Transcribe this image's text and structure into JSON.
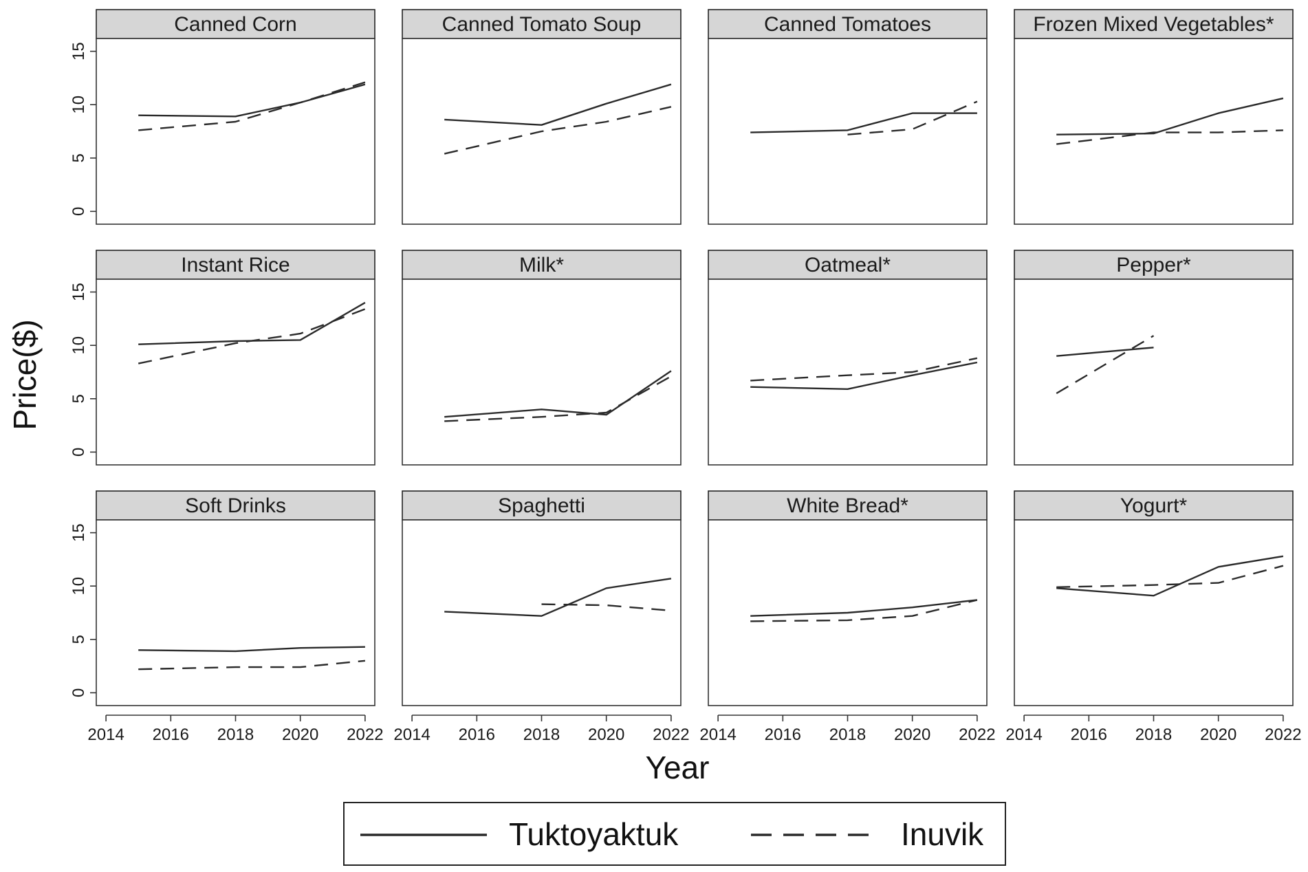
{
  "chart_data": {
    "type": "line",
    "ylabel": "Price($)",
    "xlabel": "Year",
    "xlim": [
      2013.7,
      2022.3
    ],
    "ylim": [
      -1.2,
      16.2
    ],
    "x_ticks": [
      "2014",
      "2016",
      "2018",
      "2020",
      "2022"
    ],
    "x_tick_values": [
      2014,
      2016,
      2018,
      2020,
      2022
    ],
    "y_ticks": [
      "0",
      "5",
      "10",
      "15"
    ],
    "y_tick_values": [
      0,
      5,
      10,
      15
    ],
    "legend": {
      "placement": "bottom-center",
      "entries": [
        {
          "name": "Tuktoyaktuk",
          "style": "solid"
        },
        {
          "name": "Inuvik",
          "style": "dashed"
        }
      ]
    },
    "line_color": "#2a2a2a",
    "strip_color": "#d6d6d6",
    "panels": [
      {
        "title": "Canned Corn",
        "series": [
          {
            "name": "Tuktoyaktuk",
            "x": [
              2015,
              2018,
              2020,
              2022
            ],
            "y": [
              9.0,
              8.9,
              10.2,
              11.9
            ]
          },
          {
            "name": "Inuvik",
            "x": [
              2015,
              2018,
              2020,
              2022
            ],
            "y": [
              7.6,
              8.4,
              10.2,
              12.1
            ]
          }
        ]
      },
      {
        "title": "Canned Tomato Soup",
        "series": [
          {
            "name": "Tuktoyaktuk",
            "x": [
              2015,
              2018,
              2020,
              2022
            ],
            "y": [
              8.6,
              8.1,
              10.1,
              11.9
            ]
          },
          {
            "name": "Inuvik",
            "x": [
              2015,
              2018,
              2020,
              2022
            ],
            "y": [
              5.4,
              7.5,
              8.4,
              9.8
            ]
          }
        ]
      },
      {
        "title": "Canned Tomatoes",
        "series": [
          {
            "name": "Tuktoyaktuk",
            "x": [
              2015,
              2018,
              2020,
              2022
            ],
            "y": [
              7.4,
              7.6,
              9.2,
              9.2
            ]
          },
          {
            "name": "Inuvik",
            "x": [
              2018,
              2020,
              2022
            ],
            "y": [
              7.2,
              7.7,
              10.3
            ]
          }
        ]
      },
      {
        "title": "Frozen Mixed Vegetables*",
        "series": [
          {
            "name": "Tuktoyaktuk",
            "x": [
              2015,
              2018,
              2020,
              2022
            ],
            "y": [
              7.2,
              7.3,
              9.2,
              10.6
            ]
          },
          {
            "name": "Inuvik",
            "x": [
              2015,
              2018,
              2020,
              2022
            ],
            "y": [
              6.3,
              7.4,
              7.4,
              7.6
            ]
          }
        ]
      },
      {
        "title": "Instant Rice",
        "series": [
          {
            "name": "Tuktoyaktuk",
            "x": [
              2015,
              2018,
              2020,
              2022
            ],
            "y": [
              10.1,
              10.4,
              10.5,
              14.0
            ]
          },
          {
            "name": "Inuvik",
            "x": [
              2015,
              2018,
              2020,
              2022
            ],
            "y": [
              8.3,
              10.2,
              11.1,
              13.4
            ]
          }
        ]
      },
      {
        "title": "Milk*",
        "series": [
          {
            "name": "Tuktoyaktuk",
            "x": [
              2015,
              2018,
              2020,
              2022
            ],
            "y": [
              3.3,
              4.0,
              3.5,
              7.6
            ]
          },
          {
            "name": "Inuvik",
            "x": [
              2015,
              2018,
              2020,
              2022
            ],
            "y": [
              2.9,
              3.3,
              3.7,
              7.1
            ]
          }
        ]
      },
      {
        "title": "Oatmeal*",
        "series": [
          {
            "name": "Tuktoyaktuk",
            "x": [
              2015,
              2018,
              2020,
              2022
            ],
            "y": [
              6.1,
              5.9,
              7.2,
              8.4
            ]
          },
          {
            "name": "Inuvik",
            "x": [
              2015,
              2018,
              2020,
              2022
            ],
            "y": [
              6.7,
              7.2,
              7.5,
              8.8
            ]
          }
        ]
      },
      {
        "title": "Pepper*",
        "series": [
          {
            "name": "Tuktoyaktuk",
            "x": [
              2015,
              2018
            ],
            "y": [
              9.0,
              9.8
            ]
          },
          {
            "name": "Inuvik",
            "x": [
              2015,
              2018
            ],
            "y": [
              5.5,
              10.9
            ]
          }
        ]
      },
      {
        "title": "Soft Drinks",
        "series": [
          {
            "name": "Tuktoyaktuk",
            "x": [
              2015,
              2018,
              2020,
              2022
            ],
            "y": [
              4.0,
              3.9,
              4.2,
              4.3
            ]
          },
          {
            "name": "Inuvik",
            "x": [
              2015,
              2018,
              2020,
              2022
            ],
            "y": [
              2.2,
              2.4,
              2.4,
              3.0
            ]
          }
        ]
      },
      {
        "title": "Spaghetti",
        "series": [
          {
            "name": "Tuktoyaktuk",
            "x": [
              2015,
              2018,
              2020,
              2022
            ],
            "y": [
              7.6,
              7.2,
              9.8,
              10.7
            ]
          },
          {
            "name": "Inuvik",
            "x": [
              2018,
              2020,
              2022
            ],
            "y": [
              8.3,
              8.2,
              7.7
            ]
          }
        ]
      },
      {
        "title": "White Bread*",
        "series": [
          {
            "name": "Tuktoyaktuk",
            "x": [
              2015,
              2018,
              2020,
              2022
            ],
            "y": [
              7.2,
              7.5,
              8.0,
              8.7
            ]
          },
          {
            "name": "Inuvik",
            "x": [
              2015,
              2018,
              2020,
              2022
            ],
            "y": [
              6.7,
              6.8,
              7.2,
              8.7
            ]
          }
        ]
      },
      {
        "title": "Yogurt*",
        "series": [
          {
            "name": "Tuktoyaktuk",
            "x": [
              2015,
              2018,
              2020,
              2022
            ],
            "y": [
              9.8,
              9.1,
              11.8,
              12.8
            ]
          },
          {
            "name": "Inuvik",
            "x": [
              2015,
              2018,
              2020,
              2022
            ],
            "y": [
              9.9,
              10.1,
              10.3,
              11.9
            ]
          }
        ]
      }
    ]
  }
}
